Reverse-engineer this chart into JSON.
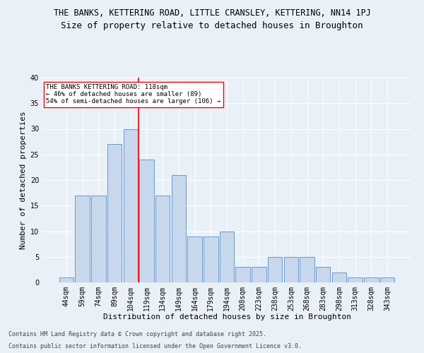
{
  "title1": "THE BANKS, KETTERING ROAD, LITTLE CRANSLEY, KETTERING, NN14 1PJ",
  "title2": "Size of property relative to detached houses in Broughton",
  "xlabel": "Distribution of detached houses by size in Broughton",
  "ylabel": "Number of detached properties",
  "bar_color": "#c8d8ec",
  "bar_edge_color": "#6699cc",
  "categories": [
    "44sqm",
    "59sqm",
    "74sqm",
    "89sqm",
    "104sqm",
    "119sqm",
    "134sqm",
    "149sqm",
    "164sqm",
    "179sqm",
    "194sqm",
    "208sqm",
    "223sqm",
    "238sqm",
    "253sqm",
    "268sqm",
    "283sqm",
    "298sqm",
    "313sqm",
    "328sqm",
    "343sqm"
  ],
  "values": [
    1,
    17,
    17,
    27,
    30,
    24,
    17,
    21,
    9,
    9,
    10,
    3,
    3,
    5,
    5,
    5,
    3,
    2,
    1,
    1,
    1
  ],
  "ylim": [
    0,
    40
  ],
  "yticks": [
    0,
    5,
    10,
    15,
    20,
    25,
    30,
    35,
    40
  ],
  "vline_index": 4.5,
  "annotation_line1": "THE BANKS KETTERING ROAD: 118sqm",
  "annotation_line2": "← 46% of detached houses are smaller (89)",
  "annotation_line3": "54% of semi-detached houses are larger (106) →",
  "annotation_box_color": "white",
  "annotation_box_edge_color": "red",
  "vline_color": "red",
  "bg_color": "#eaf0f8",
  "grid_color": "white",
  "footer1": "Contains HM Land Registry data © Crown copyright and database right 2025.",
  "footer2": "Contains public sector information licensed under the Open Government Licence v3.0.",
  "title1_fontsize": 8.5,
  "title2_fontsize": 9,
  "xlabel_fontsize": 8,
  "ylabel_fontsize": 8,
  "tick_fontsize": 7,
  "annotation_fontsize": 6.5,
  "footer_fontsize": 6
}
